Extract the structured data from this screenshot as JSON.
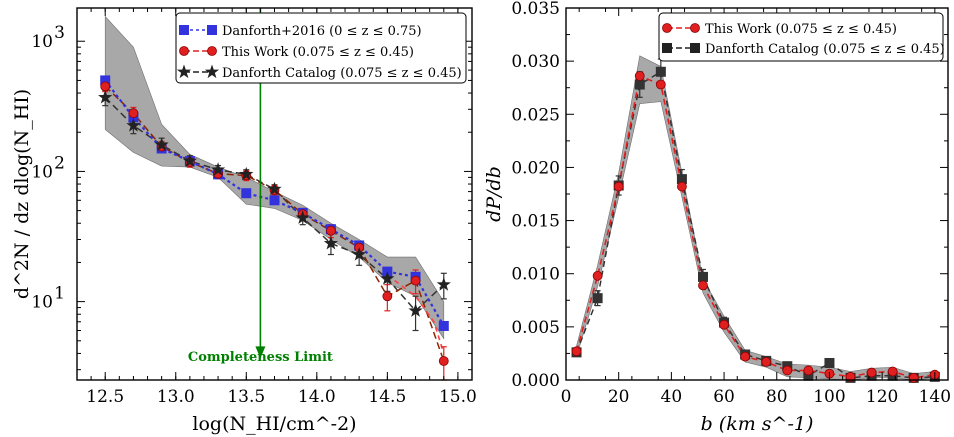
{
  "chart_data": [
    {
      "type": "line",
      "title": "",
      "xlabel": "log(N_HI/cm^-2)",
      "ylabel": "d^2N / dz dlog(N_HI)",
      "xlim": [
        12.3,
        15.1
      ],
      "ylim": [
        2.5,
        1800
      ],
      "yscale": "log",
      "xticks": [
        "12.5",
        "13.0",
        "13.5",
        "14.0",
        "14.5",
        "15.0"
      ],
      "yticks": [
        {
          "value": 10,
          "label": "10"
        },
        {
          "value": 100,
          "label": "10"
        },
        {
          "value": 1000,
          "label": "10"
        }
      ],
      "ytick_exponents": [
        "1",
        "2",
        "3"
      ],
      "legend": {
        "placement": "top-right",
        "entries": [
          {
            "label": "Danforth+2016",
            "range": "(0 ≤ z ≤ 0.75)",
            "color": "#3333dd",
            "marker": "square"
          },
          {
            "label": "This Work",
            "range": "(0.075 ≤ z ≤ 0.45)",
            "color": "#e02020",
            "marker": "circle"
          },
          {
            "label": "Danforth Catalog",
            "range": "(0.075 ≤ z ≤ 0.45)",
            "color": "#222222",
            "marker": "star"
          }
        ]
      },
      "annotation": {
        "text": "Completeness Limit",
        "x": 13.6,
        "y_from": 1800,
        "y_to": 3.8
      },
      "band": {
        "x": [
          12.5,
          12.7,
          12.9,
          13.1,
          13.3,
          13.5,
          13.7,
          13.9,
          14.1,
          14.3,
          14.5,
          14.7,
          14.9
        ],
        "upper": [
          1550,
          900,
          230,
          135,
          108,
          90,
          70,
          55,
          40,
          30,
          22,
          22,
          10
        ],
        "lower": [
          210,
          140,
          110,
          108,
          90,
          56,
          52,
          42,
          30,
          22,
          14,
          11,
          5.2
        ]
      },
      "series": [
        {
          "name": "Danforth+2016",
          "color": "#3333dd",
          "marker": "square",
          "x": [
            12.5,
            12.7,
            12.9,
            13.1,
            13.3,
            13.5,
            13.7,
            13.9,
            14.1,
            14.3,
            14.5,
            14.7,
            14.9
          ],
          "y": [
            500,
            260,
            150,
            120,
            95,
            68,
            60,
            48,
            36,
            27,
            17,
            15.5,
            6.5
          ]
        },
        {
          "name": "This Work",
          "color": "#e02020",
          "marker": "circle",
          "x": [
            12.5,
            12.7,
            12.9,
            13.1,
            13.3,
            13.5,
            13.7,
            13.9,
            14.1,
            14.3,
            14.5,
            14.7,
            14.9
          ],
          "y": [
            450,
            280,
            155,
            118,
            96,
            93,
            72,
            47,
            35,
            26,
            11,
            14.5,
            3.5
          ],
          "yerr": [
            40,
            30,
            15,
            10,
            8,
            8,
            6,
            5,
            4,
            3,
            2.5,
            3,
            1
          ]
        },
        {
          "name": "Danforth Catalog",
          "color": "#222222",
          "marker": "star",
          "x": [
            12.5,
            12.7,
            12.9,
            13.1,
            13.3,
            13.5,
            13.7,
            13.9,
            14.1,
            14.3,
            14.5,
            14.7,
            14.9
          ],
          "y": [
            370,
            225,
            160,
            120,
            103,
            95,
            73,
            44,
            28,
            23,
            15,
            8.5,
            13.5
          ],
          "yerr": [
            50,
            30,
            20,
            12,
            8,
            8,
            6,
            5,
            5,
            4,
            3,
            2.5,
            3
          ]
        }
      ]
    },
    {
      "type": "line",
      "title": "",
      "xlabel": "b (km s^-1)",
      "ylabel": "dP/db",
      "xlim": [
        0,
        145
      ],
      "ylim": [
        0,
        0.035
      ],
      "xticks": [
        "0",
        "20",
        "40",
        "60",
        "80",
        "100",
        "120",
        "140"
      ],
      "yticks": [
        "0.000",
        "0.005",
        "0.010",
        "0.015",
        "0.020",
        "0.025",
        "0.030",
        "0.035"
      ],
      "legend": {
        "placement": "top-right",
        "entries": [
          {
            "label": "This Work",
            "range": "(0.075 ≤ z ≤ 0.45)",
            "color": "#e02020",
            "marker": "circle"
          },
          {
            "label": "Danforth Catalog",
            "range": "(0.075 ≤ z ≤ 0.45)",
            "color": "#222222",
            "marker": "square"
          }
        ]
      },
      "band": {
        "x": [
          4,
          12,
          20,
          28,
          36,
          44,
          52,
          60,
          68,
          76,
          84,
          92,
          100,
          108,
          116,
          124,
          132,
          140
        ],
        "upper": [
          0.0032,
          0.0108,
          0.0195,
          0.0305,
          0.0295,
          0.0195,
          0.0095,
          0.006,
          0.0028,
          0.0022,
          0.0015,
          0.0014,
          0.0012,
          0.0008,
          0.0011,
          0.0012,
          0.0006,
          0.0008
        ],
        "lower": [
          0.0022,
          0.0088,
          0.0172,
          0.026,
          0.0262,
          0.0172,
          0.0082,
          0.0045,
          0.0017,
          0.0012,
          0.0003,
          0.0002,
          0.0001,
          0.0,
          0.0002,
          0.0002,
          0.0,
          0.0002
        ]
      },
      "series": [
        {
          "name": "This Work",
          "color": "#e02020",
          "marker": "circle",
          "x": [
            4,
            12,
            20,
            28,
            36,
            44,
            52,
            60,
            68,
            76,
            84,
            92,
            100,
            108,
            116,
            124,
            132,
            140
          ],
          "y": [
            0.0027,
            0.0098,
            0.0182,
            0.0286,
            0.0278,
            0.0182,
            0.0089,
            0.0052,
            0.0022,
            0.0017,
            0.0009,
            0.0009,
            0.0006,
            0.0003,
            0.0007,
            0.0008,
            0.0002,
            0.0005
          ]
        },
        {
          "name": "Danforth Catalog",
          "color": "#222222",
          "marker": "square",
          "x": [
            4,
            12,
            20,
            28,
            36,
            44,
            52,
            60,
            68,
            76,
            84,
            92,
            100,
            108,
            116,
            124,
            132,
            140
          ],
          "y": [
            0.0026,
            0.0077,
            0.0183,
            0.0278,
            0.029,
            0.0189,
            0.0097,
            0.0054,
            0.0024,
            0.0018,
            0.0013,
            0.0004,
            0.0016,
            0.0002,
            0.0004,
            0.0004,
            0.0002,
            0.0003
          ],
          "yerr": [
            0.0003,
            0.0007,
            0.0009,
            0.0012,
            0.0012,
            0.0009,
            0.0007,
            0.0005,
            0.0004,
            0.0003,
            0.0003,
            0.0003,
            0.0003,
            0.0002,
            0.0002,
            0.0002,
            0.0002,
            0.0002
          ]
        }
      ]
    }
  ]
}
